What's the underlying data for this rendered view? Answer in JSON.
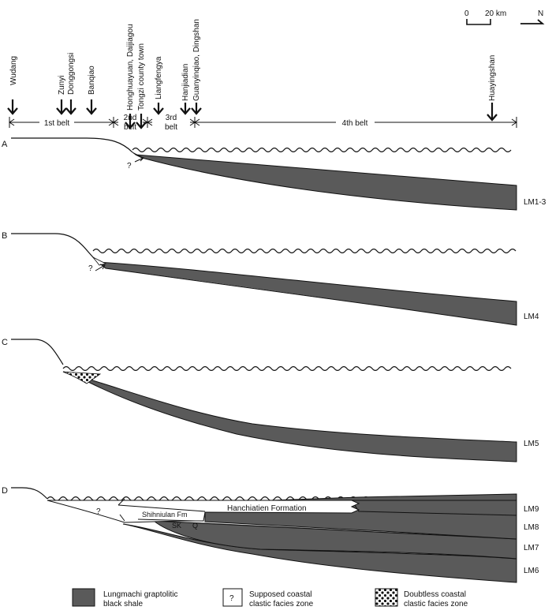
{
  "scale_bar": {
    "zero": "0",
    "distance": "20 km",
    "north": "N"
  },
  "localities": [
    {
      "name": "Wudang"
    },
    {
      "name": "Zunyi"
    },
    {
      "name": "Donggongsi"
    },
    {
      "name": "Banqiao"
    },
    {
      "name": "Honghuayuan, Daijiagou"
    },
    {
      "name": "Tongzi county town"
    },
    {
      "name": "Liangfengya"
    },
    {
      "name": "Hanjiadian"
    },
    {
      "name": "Guanyinqiao, Dingshan"
    },
    {
      "name": "Huayingshan"
    }
  ],
  "belts": [
    {
      "label": "1st belt"
    },
    {
      "label_line1": "2nd",
      "label_line2": "belt"
    },
    {
      "label_line1": "3rd",
      "label_line2": "belt"
    },
    {
      "label": "4th belt"
    }
  ],
  "panels": [
    {
      "letter": "A",
      "layer_label": "LM1-3",
      "query": "?"
    },
    {
      "letter": "B",
      "layer_label": "LM4",
      "query": "?"
    },
    {
      "letter": "C",
      "layer_label": "LM5"
    },
    {
      "letter": "D",
      "query": "?",
      "layer_labels": [
        "LM9",
        "LM8",
        "LM7",
        "LM6"
      ],
      "formations": {
        "hanchiatien": "Hanchiatien Formation",
        "shihniulan": "Shihniulan  Fm",
        "sk": "SK",
        "q": "Q"
      }
    }
  ],
  "legend": [
    {
      "line1": "Lungmachi graptolitic",
      "line2": "black shale"
    },
    {
      "symbol": "?",
      "line1": "Supposed coastal",
      "line2": "clastic facies zone"
    },
    {
      "line1": "Doubtless coastal",
      "line2": "clastic facies zone"
    }
  ],
  "colors": {
    "shale": "#5a5a5a",
    "line": "#111111",
    "background": "#ffffff"
  }
}
